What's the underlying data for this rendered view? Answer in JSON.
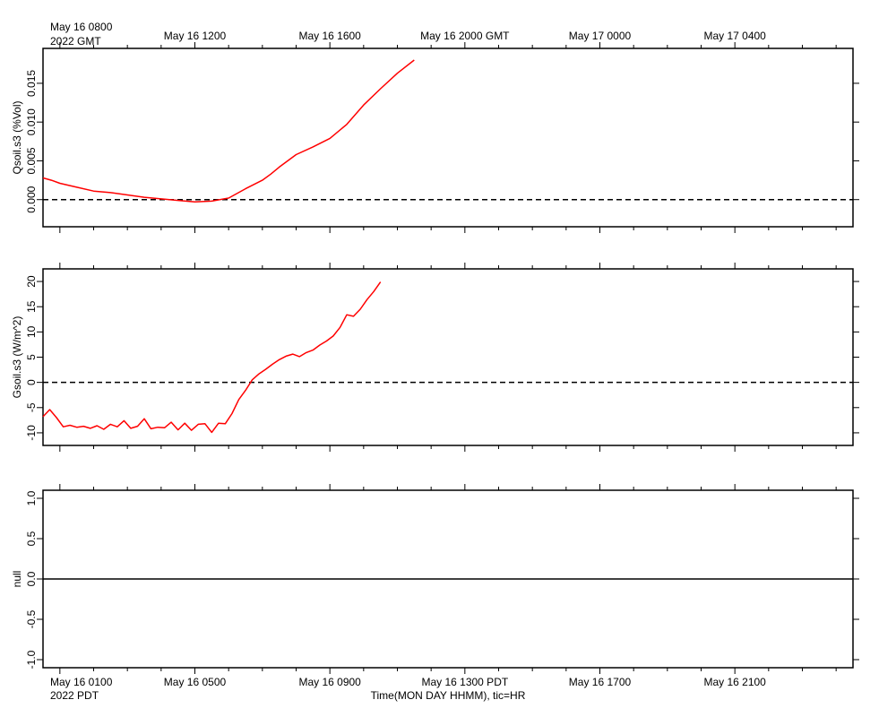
{
  "chart_data": {
    "type": "line",
    "time_axis": {
      "top_ticks": [
        "May 16 0800",
        "May 16 1200",
        "May 16 1600",
        "May 16 2000 GMT",
        "May 17 0000",
        "May 17 0400"
      ],
      "top_year": "2022 GMT",
      "bottom_ticks": [
        "May 16 0100",
        "May 16 0500",
        "May 16 0900",
        "May 16 1300 PDT",
        "May 16 1700",
        "May 16 2100"
      ],
      "bottom_year": "2022 PDT",
      "xlabel": "Time(MON DAY HHMM), tic=HR",
      "range_hours_pdt": [
        0.5,
        24.5
      ],
      "major_tick_hours_pdt": [
        1,
        5,
        9,
        13,
        17,
        21
      ]
    },
    "panels": [
      {
        "ylabel": "Qsoil.s3 (%Vol)",
        "ylim": [
          -0.0035,
          0.0195
        ],
        "yticks": [
          0.0,
          0.005,
          0.01,
          0.015
        ],
        "ytick_labels": [
          "0.000",
          "0.005",
          "0.010",
          "0.015"
        ],
        "zero_line": true,
        "series": [
          {
            "color": "#ff0000",
            "x": [
              0.5,
              0.75,
              1.0,
              1.5,
              2.0,
              2.5,
              3.0,
              3.5,
              4.0,
              4.5,
              5.0,
              5.5,
              6.0,
              6.5,
              7.0,
              7.25,
              7.5,
              8.0,
              8.5,
              9.0,
              9.5,
              10.0,
              10.5,
              11.0,
              11.5,
              12.0
            ],
            "y": [
              0.0028,
              0.0025,
              0.0021,
              0.0016,
              0.0011,
              0.0009,
              0.0006,
              0.0003,
              0.0001,
              -0.0001,
              -0.0003,
              -0.0002,
              0.0002,
              0.0014,
              0.0025,
              0.0033,
              0.0042,
              0.0058,
              0.0068,
              0.0079,
              0.0097,
              0.0122,
              0.0143,
              0.0163,
              0.018,
              null
            ]
          }
        ]
      },
      {
        "ylabel": "Gsoil.s3 (W/m^2)",
        "ylim": [
          -12.5,
          22.5
        ],
        "yticks": [
          -10,
          -5,
          0,
          5,
          10,
          15,
          20
        ],
        "ytick_labels": [
          "-10",
          "-5",
          "0",
          "5",
          "10",
          "15",
          "20"
        ],
        "zero_line": true,
        "series": [
          {
            "color": "#ff0000",
            "x": [
              0.5,
              0.7,
              0.9,
              1.1,
              1.3,
              1.5,
              1.7,
              1.9,
              2.1,
              2.3,
              2.5,
              2.7,
              2.9,
              3.1,
              3.3,
              3.5,
              3.7,
              3.9,
              4.1,
              4.3,
              4.5,
              4.7,
              4.9,
              5.1,
              5.3,
              5.5,
              5.7,
              5.9,
              6.1,
              6.3,
              6.5,
              6.7,
              6.9,
              7.1,
              7.3,
              7.5,
              7.7,
              7.9,
              8.1,
              8.3,
              8.5,
              8.7,
              8.9,
              9.1,
              9.3,
              9.5,
              9.7,
              9.9,
              10.1,
              10.3,
              10.5,
              10.7,
              10.9,
              11.1,
              11.3,
              11.5,
              11.7
            ],
            "y": [
              -6.8,
              -5.4,
              -7.0,
              -8.8,
              -8.5,
              -8.9,
              -8.7,
              -9.1,
              -8.6,
              -9.3,
              -8.3,
              -8.8,
              -7.6,
              -9.1,
              -8.7,
              -7.2,
              -9.2,
              -8.9,
              -9.0,
              -7.9,
              -9.4,
              -8.1,
              -9.5,
              -8.3,
              -8.2,
              -9.9,
              -8.1,
              -8.2,
              -6.2,
              -3.4,
              -1.6,
              0.5,
              1.7,
              2.6,
              3.6,
              4.5,
              5.2,
              5.6,
              5.1,
              5.9,
              6.4,
              7.4,
              8.2,
              9.2,
              10.9,
              13.4,
              13.1,
              14.5,
              16.4,
              18.0,
              19.9,
              null,
              null,
              null,
              null,
              null,
              null
            ]
          }
        ]
      },
      {
        "ylabel": "null",
        "ylim": [
          -1.1,
          1.1
        ],
        "yticks": [
          -1.0,
          -0.5,
          0.0,
          0.5,
          1.0
        ],
        "ytick_labels": [
          "-1.0",
          "-0.5",
          "0.0",
          "0.5",
          "1.0"
        ],
        "zero_line": true,
        "series": []
      }
    ]
  }
}
